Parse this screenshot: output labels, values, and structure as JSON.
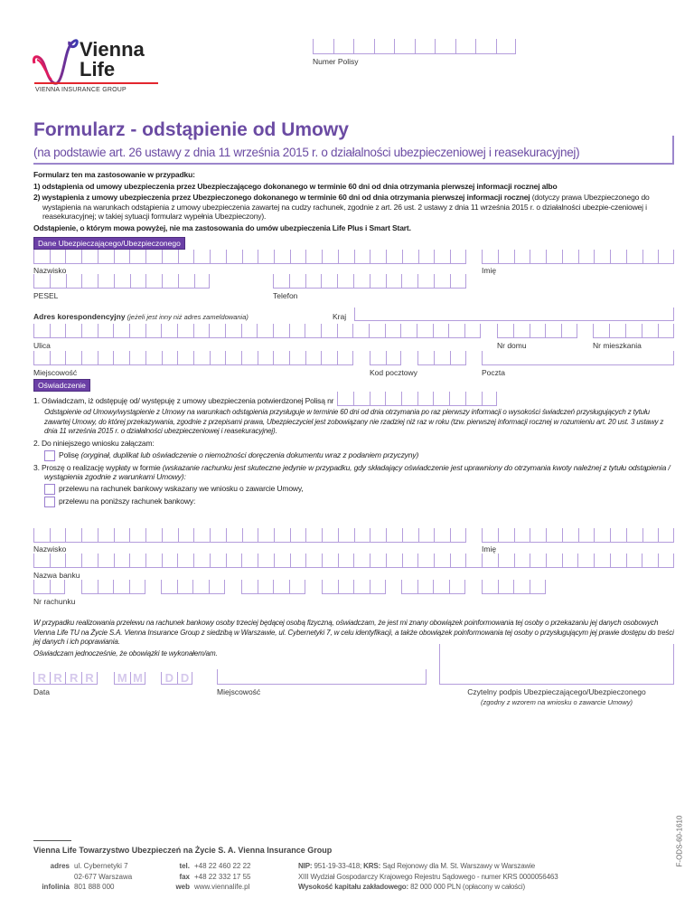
{
  "brand": {
    "name_line1": "Vienna",
    "name_line2": "Life",
    "group": "VIENNA INSURANCE GROUP",
    "colors": {
      "pink": "#e6195a",
      "blue": "#3a3ab0",
      "accent": "#6b3fa6",
      "red_line": "#e3262e"
    }
  },
  "policy_number": {
    "label": "Numer Polisy"
  },
  "title": "Formularz - odstąpienie od Umowy",
  "subtitle": "(na podstawie art. 26 ustawy z dnia 11 września 2015 r. o działalności ubezpieczeniowej i reasekuracyjnej)",
  "intro": {
    "heading": "Formularz ten ma zastosowanie w przypadku:",
    "item1": "1)  odstąpienia od umowy ubezpieczenia przez Ubezpieczającego dokonanego w terminie 60 dni od dnia otrzymania pierwszej informacji rocznej albo",
    "item2_bold": "2)  wystąpienia z umowy ubezpieczenia przez Ubezpieczonego dokonanego w terminie 60 dni od dnia otrzymania pierwszej informacji rocznej",
    "item2_rest": " (dotyczy prawa Ubezpieczonego do wystąpienia na warunkach odstąpienia z umowy ubezpieczenia zawartej na cudzy rachunek, zgodnie z art. 26 ust. 2 ustawy z dnia 11 września 2015 r. o działalności ubezpie-czeniowej i reasekuracyjnej; w takiej sytuacji formularz wypełnia Ubezpieczony).",
    "note": "Odstąpienie, o którym mowa powyżej, nie ma zastosowania do umów ubezpieczenia Life Plus  i Smart Start."
  },
  "section1": {
    "title": "Dane Ubezpieczającego/Ubezpieczonego",
    "labels": {
      "surname": "Nazwisko",
      "name": "Imię",
      "pesel": "PESEL",
      "phone": "Telefon",
      "address_bold": "Adres korespondencyjny",
      "address_note": " (jeżeli jest inny niż adres zameldowania)",
      "country": "Kraj",
      "street": "Ulica",
      "house": "Nr domu",
      "flat": "Nr mieszkania",
      "city": "Miejscowość",
      "postcode": "Kod pocztowy",
      "post": "Poczta"
    }
  },
  "section2": {
    "title": "Oświadczenie",
    "s1": "1. Oświadczam, iż odstępuję od/ występuję z umowy ubezpieczenia potwierdzonej Polisą nr",
    "s1_note": "Odstąpienie od Umowy/wystąpienie z Umowy na warunkach odstąpienia przysługuje w terminie 60 dni od dnia otrzymania po raz pierwszy informacji o wysokości świadczeń przysługujących z tytułu zawartej Umowy, do której przekazywania, zgodnie z przepisami prawa, Ubezpieczyciel jest zobowiązany nie rzadziej niż raz w roku (tzw. pierwszej informacji rocznej w rozumieniu art. 20 ust. 3 ustawy z dnia 11 września 2015 r. o działalności ubezpieczeniowej i reasekuracyjnej).",
    "s2": "2. Do niniejszego wniosku załączam:",
    "attach_main": "Polisę",
    "attach_note": " (oryginał, duplikat lub oświadczenie o niemożności doręczenia dokumentu wraz z podaniem przyczyny)",
    "s3": "3. Proszę o  realizację wypłaty w formie",
    "s3_note": " (wskazanie rachunku jest skuteczne jedynie w przypadku, gdy składający oświadczenie jest uprawniony do otrzymania kwoty należnej z tytułu odstąpienia / wystąpienia zgodnie z warunkami Umowy):",
    "opt1": "przelewu na rachunek bankowy wskazany we wniosku o zawarcie Umowy,",
    "opt2": "przelewu na poniższy rachunek bankowy:",
    "labels": {
      "surname": "Nazwisko",
      "name": "Imię",
      "bank": "Nazwa banku",
      "account": "Nr rachunku"
    },
    "gdpr": "W przypadku realizowania przelewu na rachunek bankowy osoby trzeciej będącej osobą fizyczną, oświadczam, że jest mi znany obowiązek poinformowania tej osoby o przekazaniu jej danych osobowych Vienna Life TU na Życie S.A. Vienna Insurance Group z siedzibą w Warszawie, ul. Cybernetyki 7, w celu identyfikacji, a także obowiązek poinformowania tej osoby o przysługującym jej prawie dostępu do treści jej danych i ich poprawiania.",
    "gdpr2": "Oświadczam jednocześnie, że obowiązki te wykonałem/am."
  },
  "signature": {
    "date": "Data",
    "year": [
      "R",
      "R",
      "R",
      "R"
    ],
    "month": [
      "M",
      "M"
    ],
    "day": [
      "D",
      "D"
    ],
    "place": "Miejscowość",
    "sign": "Czytelny podpis Ubezpieczającego/Ubezpieczonego",
    "sign_note": "(zgodny z wzorem na wniosku o zawarcie Umowy)"
  },
  "footer": {
    "company": "Vienna Life Towarzystwo Ubezpieczeń na Życie S. A. Vienna Insurance Group",
    "adres_label": "adres",
    "adres1": "ul. Cybernetyki 7",
    "adres2": "02-677 Warszawa",
    "info_label": "infolinia",
    "info": "801 888 000",
    "tel_label": "tel.",
    "tel": "+48 22 460 22 22",
    "fax_label": "fax",
    "fax": "+48 22 332 17 55",
    "web_label": "web",
    "web": "www.viennalife.pl",
    "nip_label": "NIP:",
    "nip": " 951-19-33-418; ",
    "krs_label": "KRS:",
    "krs": " Sąd Rejonowy dla M. St. Warszawy w Warszawie",
    "krs2": "XIII Wydział Gospodarczy Krajowego Rejestru Sądowego - numer KRS 0000056463",
    "cap_label": "Wysokość kapitału zakładowego:",
    "cap": " 82 000 000 PLN (opłacony w całości)",
    "code": "F-ODS-60-1610"
  }
}
